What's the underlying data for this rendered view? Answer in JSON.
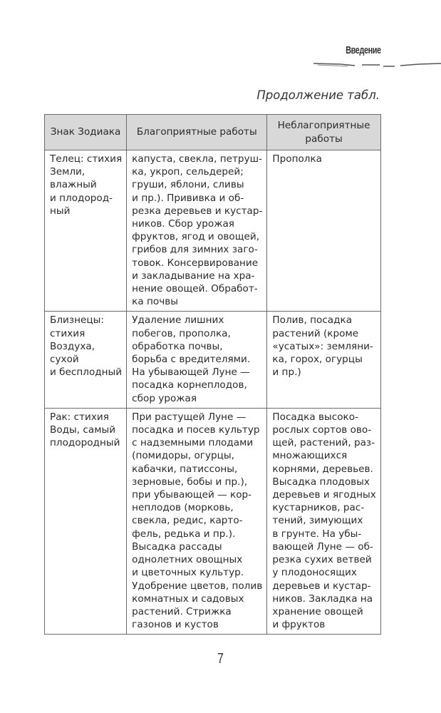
{
  "running_head": "Введение",
  "continuation_label": "Продолжение табл.",
  "table": {
    "headers": [
      "Знак Зодиака",
      "Благоприятные работы",
      "Неблагоприятные работы"
    ],
    "rows": [
      {
        "sign": [
          "Телец: стихия",
          "Земли,",
          "влажный",
          "и плодород-",
          "ный"
        ],
        "favorable": [
          "капуста, свекла, петруш-",
          "ка, укроп, сельдерей;",
          "груши, яблони, сливы",
          "и пр.). Прививка и об-",
          "резка деревьев и кустар-",
          "ников. Сбор урожая",
          "фруктов, ягод и овощей,",
          "грибов для зимних заго-",
          "товок. Консервирование",
          "и закладывание на хра-",
          "нение овощей. Обработ-",
          "ка почвы"
        ],
        "unfavorable": [
          "Прополка"
        ]
      },
      {
        "sign": [
          "Близнецы:",
          "стихия",
          "Воздуха,",
          "сухой",
          "и бесплодный"
        ],
        "favorable": [
          "Удаление лишних",
          "побегов, прополка,",
          "обработка почвы,",
          "борьба с вредителями.",
          "На убывающей Луне —",
          "посадка корнеплодов,",
          "сбор урожая"
        ],
        "unfavorable": [
          "Полив, посадка",
          "растений (кроме",
          "«усатых»: земляни-",
          "ка, горох, огурцы",
          "и пр.)"
        ]
      },
      {
        "sign": [
          "Рак: стихия",
          "Воды, самый",
          "плодородный"
        ],
        "favorable": [
          "При растущей Луне —",
          "посадка и посев культур",
          "с надземными плодами",
          "(помидоры, огурцы,",
          "кабачки, патиссоны,",
          "зерновые, бобы и пр.),",
          "при убывающей — кор-",
          "неплодов (морковь,",
          "свекла, редис, карто-",
          "фель, редька и пр.).",
          "Высадка рассады",
          "однолетних овощных",
          "и цветочных культур.",
          "Удобрение цветов, полив",
          "комнатных и садовых",
          "растений. Стрижка",
          "газонов и кустов"
        ],
        "unfavorable": [
          "Посадка высоко-",
          "рослых сортов ово-",
          "щей, растений, раз-",
          "множающихся",
          "корнями, деревьев.",
          "Высадка плодовых",
          "деревьев и ягодных",
          "кустарников, рас-",
          "тений, зимующих",
          "в грунте. На убы-",
          "вающей Луне — об-",
          "резка сухих ветвей",
          "у плодоносящих",
          "деревьев и кустар-",
          "ников. Закладка на",
          "хранение овощей",
          "и фруктов"
        ]
      }
    ]
  },
  "page_number": "7"
}
